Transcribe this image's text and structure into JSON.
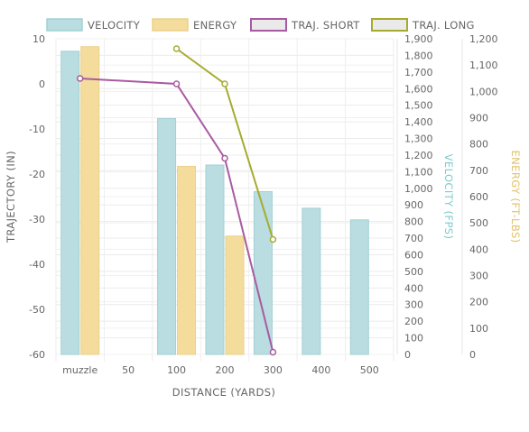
{
  "chart_data": {
    "type": "bar",
    "categories": [
      "muzzle",
      "50",
      "100",
      "200",
      "300",
      "400",
      "500"
    ],
    "x_title": "DISTANCE (YARDS)",
    "axes": {
      "trajectory": {
        "title": "TRAJECTORY (IN)",
        "min": -60,
        "max": 10,
        "ticks": [
          "10",
          "0",
          "-10",
          "-20",
          "-30",
          "-40",
          "-50",
          "-60"
        ]
      },
      "velocity": {
        "title": "VELOCITY (FPS)",
        "min": 0,
        "max": 1900,
        "ticks": [
          "0",
          "100",
          "200",
          "300",
          "400",
          "500",
          "600",
          "700",
          "800",
          "900",
          "1,000",
          "1,100",
          "1,200",
          "1,300",
          "1,400",
          "1,500",
          "1,600",
          "1,700",
          "1,800",
          "1,900"
        ],
        "color": "#7ecbcd"
      },
      "energy": {
        "title": "ENERGY (FT-LBS)",
        "min": 0,
        "max": 1200,
        "ticks": [
          "0",
          "100",
          "200",
          "300",
          "400",
          "500",
          "600",
          "700",
          "800",
          "900",
          "1,000",
          "1,100",
          "1,200"
        ],
        "color": "#e3c16b"
      }
    },
    "series": [
      {
        "name": "VELOCITY",
        "kind": "bar",
        "axis": "velocity",
        "fill": "#b9dde0",
        "stroke": "#a3d0d4",
        "values": [
          1825,
          null,
          1420,
          1140,
          980,
          880,
          810
        ]
      },
      {
        "name": "ENERGY",
        "kind": "bar",
        "axis": "energy",
        "fill": "#f4dc9c",
        "stroke": "#ecd08a",
        "values": [
          1170,
          null,
          715,
          450,
          null,
          null,
          null
        ]
      },
      {
        "name": "TRAJ. SHORT",
        "kind": "line",
        "axis": "trajectory",
        "color": "#a95aa0",
        "values": [
          1.2,
          null,
          0,
          -16.5,
          -59.5,
          null,
          null
        ]
      },
      {
        "name": "TRAJ. LONG",
        "kind": "line",
        "axis": "trajectory",
        "color": "#a6ab2f",
        "values": [
          null,
          null,
          7.8,
          0,
          -34.5,
          null,
          null
        ]
      }
    ],
    "grid": true,
    "legend": "top"
  }
}
